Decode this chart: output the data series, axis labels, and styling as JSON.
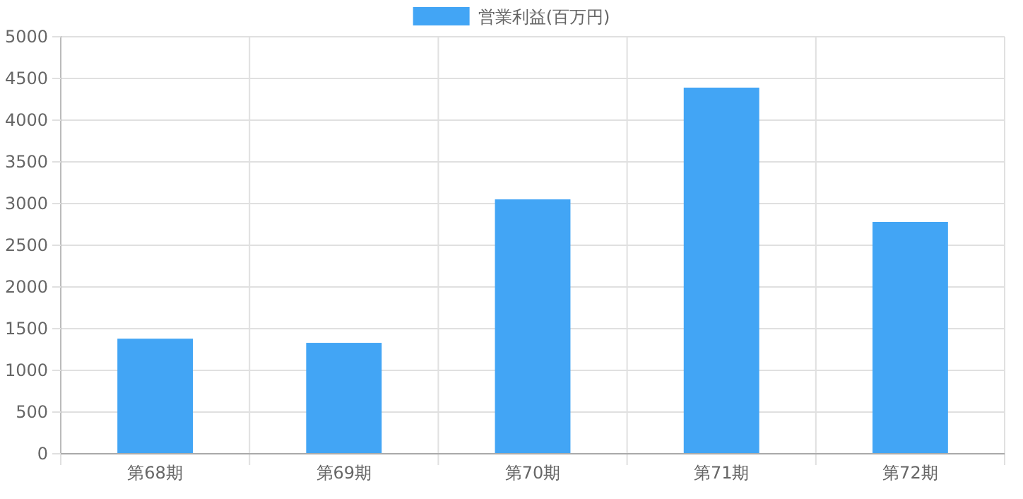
{
  "chart_data": {
    "type": "bar",
    "categories": [
      "第68期",
      "第69期",
      "第70期",
      "第71期",
      "第72期"
    ],
    "series": [
      {
        "name": "営業利益(百万円)",
        "color": "#42a5f5",
        "values": [
          1380,
          1330,
          3050,
          4390,
          2780
        ]
      }
    ],
    "ylim": [
      0,
      5000
    ],
    "yticks": [
      0,
      500,
      1000,
      1500,
      2000,
      2500,
      3000,
      3500,
      4000,
      4500,
      5000
    ],
    "grid": true,
    "legend": "top"
  }
}
